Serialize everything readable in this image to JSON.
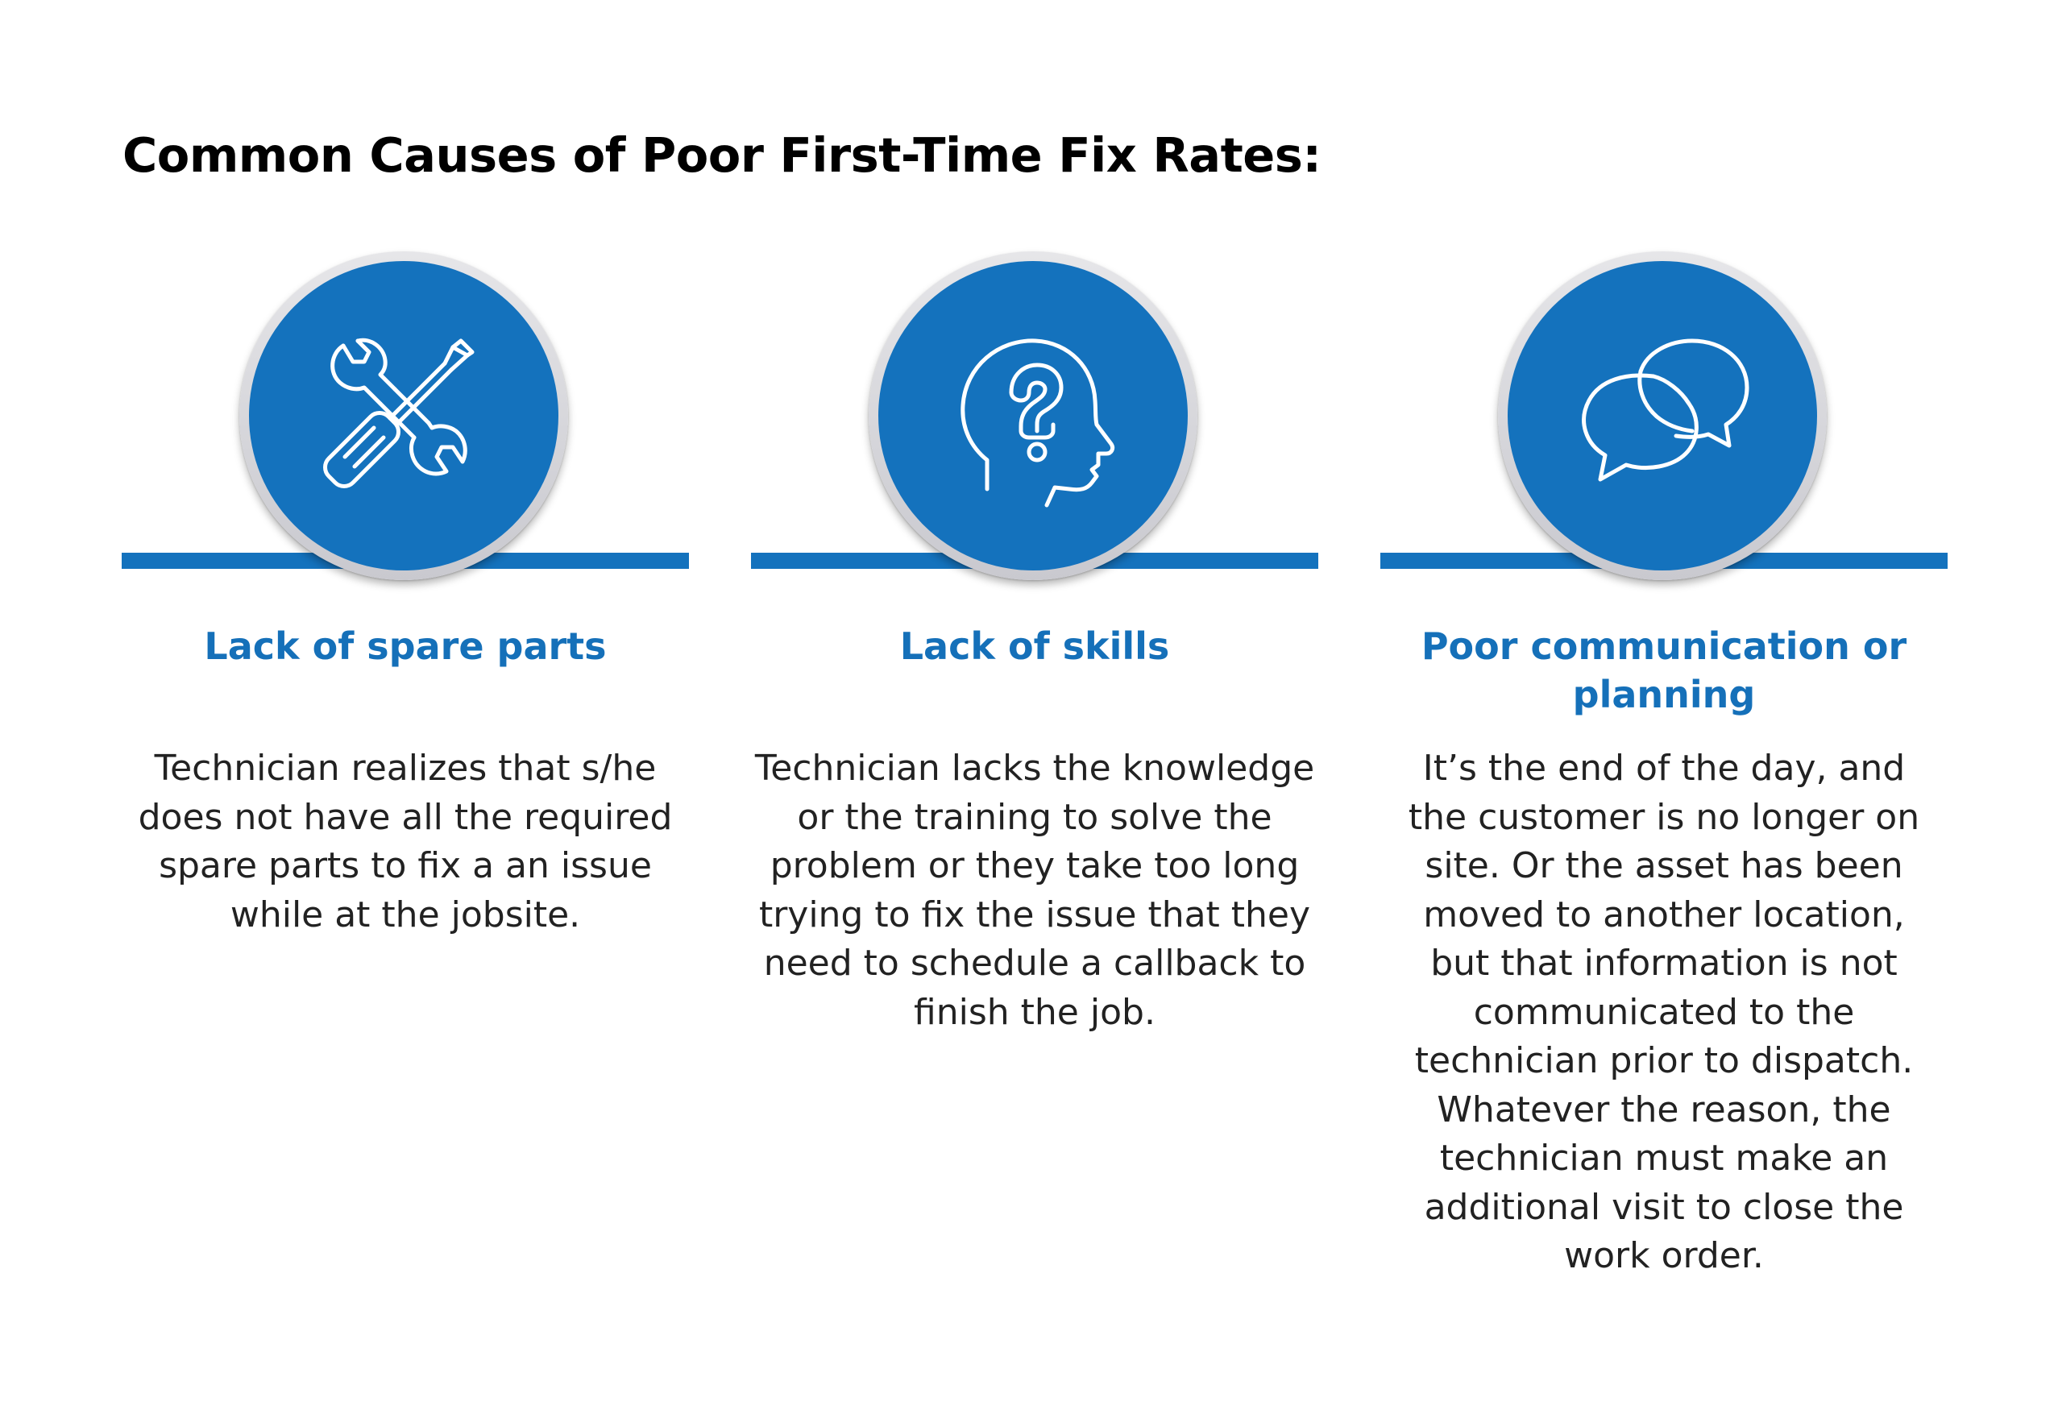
{
  "title": "Common Causes of Poor First-Time Fix Rates:",
  "colors": {
    "accent_blue": "#1472bd",
    "heading_blue": "#1570b9",
    "ring_gray": "#d6d6db",
    "text": "#222222"
  },
  "causes": [
    {
      "icon": "wrench-screwdriver-icon",
      "heading": "Lack of spare parts",
      "description": "Technician realizes that s/he does not have all the required spare parts to fix a an issue while at the jobsite."
    },
    {
      "icon": "head-question-icon",
      "heading": "Lack of skills",
      "description": "Technician lacks the knowledge or the training to solve the problem or they take too long trying to fix the issue that they need to schedule a callback to finish the job."
    },
    {
      "icon": "chat-bubbles-icon",
      "heading": "Poor communication or planning",
      "description": "It’s the end of the day, and the customer is no longer on site. Or the asset has been moved to another location, but that information is not communicated to the technician prior to dispatch. Whatever the reason, the technician must make an additional visit to close the work order."
    }
  ]
}
